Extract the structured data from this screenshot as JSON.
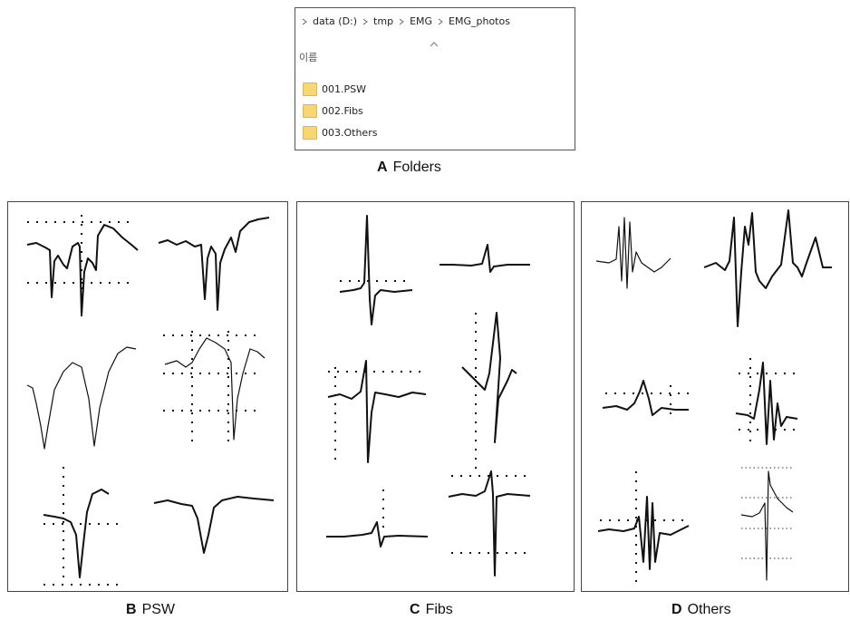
{
  "breadcrumb": [
    "data (D:)",
    "tmp",
    "EMG",
    "EMG_photos"
  ],
  "column_header": "이름",
  "folders": [
    "001.PSW",
    "002.Fibs",
    "003.Others"
  ],
  "panels": [
    {
      "letter": "A",
      "caption": "Folders"
    },
    {
      "letter": "B",
      "caption": "PSW"
    },
    {
      "letter": "C",
      "caption": "Fibs"
    },
    {
      "letter": "D",
      "caption": "Others"
    }
  ]
}
